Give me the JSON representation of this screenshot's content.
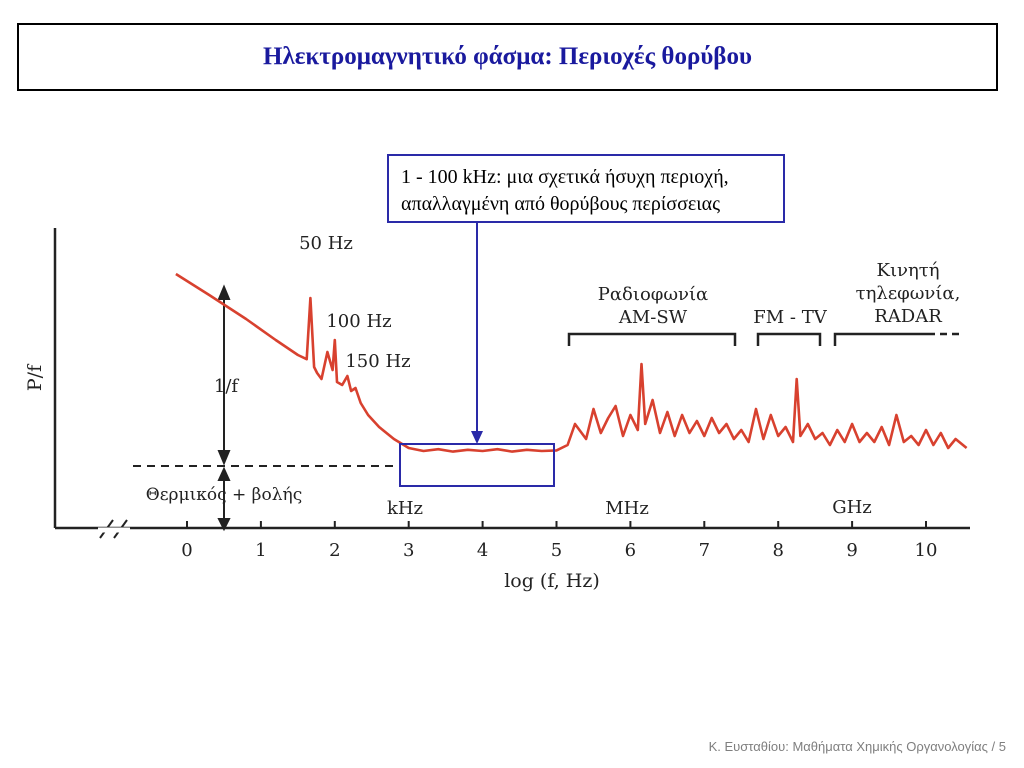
{
  "slide": {
    "title": "Ηλεκτρομαγνητικό φάσμα: Περιοχές θορύβου",
    "footer": "Κ. Ευσταθίου: Μαθήματα Χημικής Οργανολογίας / 5"
  },
  "callout": {
    "line1": "1 - 100 kHz: μια σχετικά ήσυχη περιοχή,",
    "line2": "απαλλαγμένη από θορύβους περίσσειας"
  },
  "colors": {
    "curve": "#d8412f",
    "callout_border": "#2a2aa8",
    "title": "#1a1a9e"
  },
  "chart_data": {
    "type": "line",
    "xlabel": "log (f, Hz)",
    "ylabel": "P/f",
    "xlim": [
      0,
      10.6
    ],
    "x_ticks": [
      "0",
      "1",
      "2",
      "3",
      "4",
      "5",
      "6",
      "7",
      "8",
      "9",
      "10"
    ],
    "grid": false,
    "unit_labels": [
      "kHz",
      "MHz",
      "GHz"
    ],
    "annotations": {
      "peak_50": "50 Hz",
      "peak_100": "100 Hz",
      "peak_150": "150 Hz",
      "one_over_f": "1/f",
      "thermal": "Θερμικός + βολής",
      "radio_1": "Ραδιοφωνία",
      "radio_2": "AM-SW",
      "fmtv": "FM - TV",
      "mobile_1": "Κινητή",
      "mobile_2": "τηλεφωνία,",
      "mobile_3": "RADAR"
    },
    "series": [
      {
        "x": [
          -0.15,
          0.3,
          0.8,
          1.2,
          1.5,
          1.62,
          1.67,
          1.72,
          1.76,
          1.82,
          1.9,
          1.97,
          2.0,
          2.03,
          2.1,
          2.17,
          2.22,
          2.28,
          2.35,
          2.45,
          2.6,
          2.8,
          3.0,
          3.2,
          3.4,
          3.6,
          3.8,
          4.0,
          4.2,
          4.4,
          4.6,
          4.8,
          5.0,
          5.15,
          5.25,
          5.4,
          5.5,
          5.6,
          5.7,
          5.8,
          5.9,
          6.0,
          6.1,
          6.15,
          6.2,
          6.3,
          6.4,
          6.5,
          6.6,
          6.7,
          6.8,
          6.9,
          7.0,
          7.1,
          7.2,
          7.3,
          7.4,
          7.5,
          7.6,
          7.7,
          7.8,
          7.9,
          8.0,
          8.1,
          8.2,
          8.25,
          8.3,
          8.4,
          8.5,
          8.6,
          8.7,
          8.8,
          8.9,
          9.0,
          9.1,
          9.2,
          9.3,
          9.4,
          9.5,
          9.6,
          9.7,
          9.8,
          9.9,
          10.0,
          10.1,
          10.2,
          10.3,
          10.4,
          10.55
        ],
        "y": [
          3.2,
          2.85,
          2.45,
          2.1,
          1.85,
          1.78,
          2.8,
          1.65,
          1.55,
          1.45,
          1.9,
          1.6,
          2.1,
          1.4,
          1.35,
          1.5,
          1.25,
          1.3,
          1.05,
          0.85,
          0.65,
          0.45,
          0.3,
          0.25,
          0.28,
          0.24,
          0.27,
          0.25,
          0.28,
          0.24,
          0.27,
          0.25,
          0.26,
          0.35,
          0.7,
          0.45,
          0.95,
          0.55,
          0.8,
          1.0,
          0.5,
          0.85,
          0.6,
          1.7,
          0.7,
          1.1,
          0.55,
          0.9,
          0.5,
          0.85,
          0.55,
          0.75,
          0.5,
          0.8,
          0.55,
          0.7,
          0.45,
          0.6,
          0.4,
          0.95,
          0.45,
          0.85,
          0.5,
          0.65,
          0.4,
          1.45,
          0.5,
          0.7,
          0.45,
          0.55,
          0.35,
          0.6,
          0.4,
          0.7,
          0.4,
          0.55,
          0.4,
          0.65,
          0.35,
          0.85,
          0.4,
          0.5,
          0.35,
          0.6,
          0.35,
          0.55,
          0.3,
          0.45,
          0.3
        ]
      }
    ]
  }
}
